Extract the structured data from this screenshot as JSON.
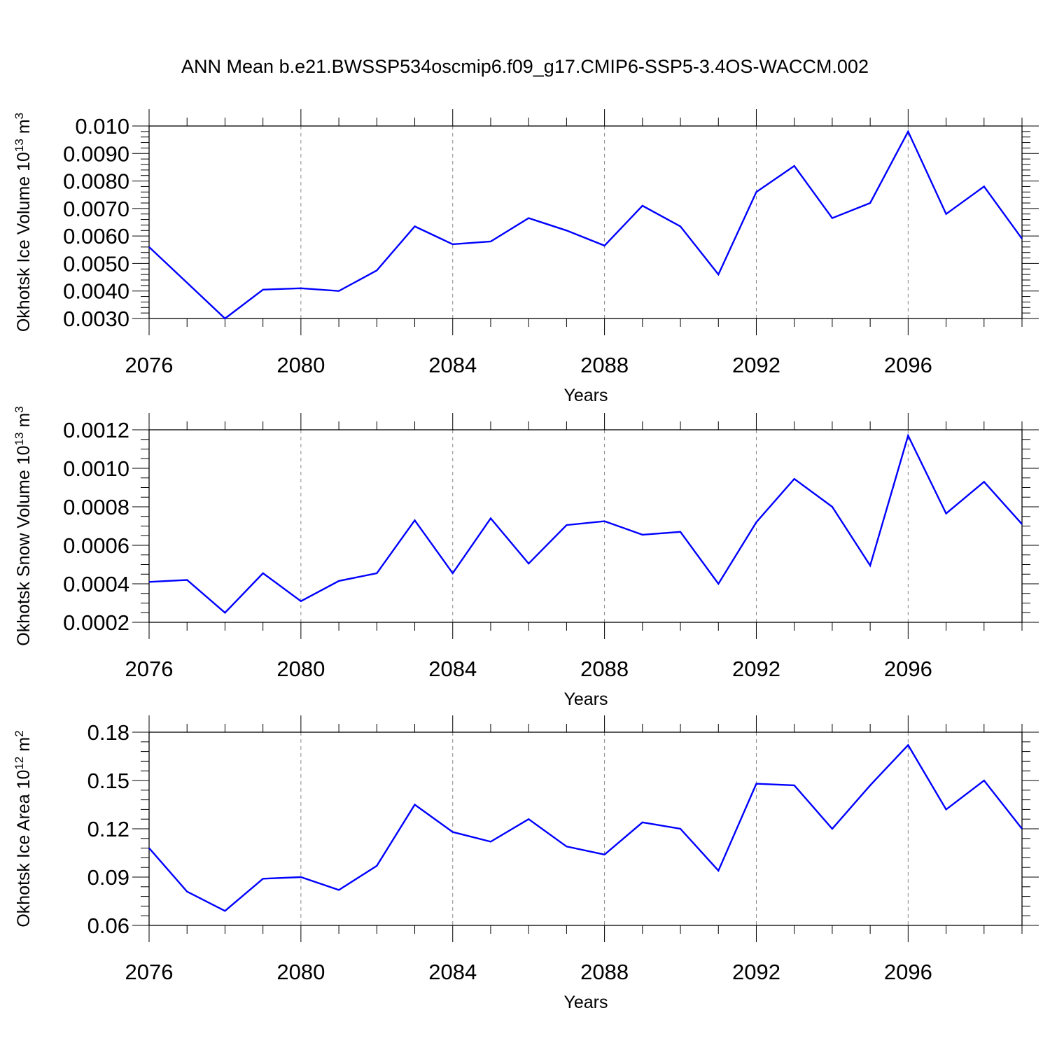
{
  "figure_title": "ANN Mean b.e21.BWSSP534oscmip6.f09_g17.CMIP6-SSP5-3.4OS-WACCM.002",
  "chart_data": [
    {
      "type": "line",
      "title": "ANN Mean b.e21.BWSSP534oscmip6.f09_g17.CMIP6-SSP5-3.4OS-WACCM.002",
      "ylabel": "Okhotsk Ice Volume",
      "ylabel_unit": "10",
      "ylabel_exp": "13",
      "ylabel_suffix": "m",
      "ylabel_suffix_exp": "3",
      "xlabel": "Years",
      "xlim": [
        2076,
        2099
      ],
      "ylim": [
        0.003,
        0.01
      ],
      "xticks": [
        "2076",
        "2080",
        "2084",
        "2088",
        "2092",
        "2096"
      ],
      "xtick_values": [
        2076,
        2080,
        2084,
        2088,
        2092,
        2096
      ],
      "yticks": [
        "0.0030",
        "0.0040",
        "0.0050",
        "0.0060",
        "0.0070",
        "0.0080",
        "0.0090",
        "0.010"
      ],
      "ytick_values": [
        0.003,
        0.004,
        0.005,
        0.006,
        0.007,
        0.008,
        0.009,
        0.01
      ],
      "minor_per_major": 5,
      "grid_x": [
        2080,
        2084,
        2088,
        2092,
        2096
      ],
      "color": "#0000ff",
      "x": [
        2076,
        2077,
        2078,
        2079,
        2080,
        2081,
        2082,
        2083,
        2084,
        2085,
        2086,
        2087,
        2088,
        2089,
        2090,
        2091,
        2092,
        2093,
        2094,
        2095,
        2096,
        2097,
        2098,
        2099
      ],
      "y": [
        0.0056,
        0.0043,
        0.003,
        0.00405,
        0.0041,
        0.004,
        0.00475,
        0.00635,
        0.0057,
        0.0058,
        0.00665,
        0.0062,
        0.00565,
        0.0071,
        0.00635,
        0.0046,
        0.0076,
        0.00855,
        0.00665,
        0.0072,
        0.0098,
        0.0068,
        0.0078,
        0.0059
      ]
    },
    {
      "type": "line",
      "title": "",
      "ylabel": "Okhotsk Snow Volume",
      "ylabel_unit": "10",
      "ylabel_exp": "13",
      "ylabel_suffix": "m",
      "ylabel_suffix_exp": "3",
      "xlabel": "Years",
      "xlim": [
        2076,
        2099
      ],
      "ylim": [
        0.0002,
        0.0012
      ],
      "xticks": [
        "2076",
        "2080",
        "2084",
        "2088",
        "2092",
        "2096"
      ],
      "xtick_values": [
        2076,
        2080,
        2084,
        2088,
        2092,
        2096
      ],
      "yticks": [
        "0.0002",
        "0.0004",
        "0.0006",
        "0.0008",
        "0.0010",
        "0.0012"
      ],
      "ytick_values": [
        0.0002,
        0.0004,
        0.0006,
        0.0008,
        0.001,
        0.0012
      ],
      "minor_per_major": 4,
      "grid_x": [
        2080,
        2084,
        2088,
        2092,
        2096
      ],
      "color": "#0000ff",
      "x": [
        2076,
        2077,
        2078,
        2079,
        2080,
        2081,
        2082,
        2083,
        2084,
        2085,
        2086,
        2087,
        2088,
        2089,
        2090,
        2091,
        2092,
        2093,
        2094,
        2095,
        2096,
        2097,
        2098,
        2099
      ],
      "y": [
        0.00041,
        0.00042,
        0.00025,
        0.000455,
        0.00031,
        0.000415,
        0.000455,
        0.00073,
        0.000455,
        0.00074,
        0.000505,
        0.000705,
        0.000725,
        0.000655,
        0.00067,
        0.0004,
        0.00072,
        0.000945,
        0.0008,
        0.000495,
        0.00117,
        0.000765,
        0.00093,
        0.00071
      ]
    },
    {
      "type": "line",
      "title": "",
      "ylabel": "Okhotsk Ice Area",
      "ylabel_unit": "10",
      "ylabel_exp": "12",
      "ylabel_suffix": "m",
      "ylabel_suffix_exp": "2",
      "xlabel": "Years",
      "xlim": [
        2076,
        2099
      ],
      "ylim": [
        0.06,
        0.18
      ],
      "xticks": [
        "2076",
        "2080",
        "2084",
        "2088",
        "2092",
        "2096"
      ],
      "xtick_values": [
        2076,
        2080,
        2084,
        2088,
        2092,
        2096
      ],
      "yticks": [
        "0.06",
        "0.09",
        "0.12",
        "0.15",
        "0.18"
      ],
      "ytick_values": [
        0.06,
        0.09,
        0.12,
        0.15,
        0.18
      ],
      "minor_per_major": 5,
      "grid_x": [
        2080,
        2084,
        2088,
        2092,
        2096
      ],
      "color": "#0000ff",
      "x": [
        2076,
        2077,
        2078,
        2079,
        2080,
        2081,
        2082,
        2083,
        2084,
        2085,
        2086,
        2087,
        2088,
        2089,
        2090,
        2091,
        2092,
        2093,
        2094,
        2095,
        2096,
        2097,
        2098,
        2099
      ],
      "y": [
        0.108,
        0.081,
        0.069,
        0.089,
        0.09,
        0.082,
        0.097,
        0.135,
        0.118,
        0.112,
        0.126,
        0.109,
        0.104,
        0.124,
        0.12,
        0.094,
        0.148,
        0.147,
        0.12,
        0.147,
        0.172,
        0.132,
        0.15,
        0.12
      ]
    }
  ]
}
